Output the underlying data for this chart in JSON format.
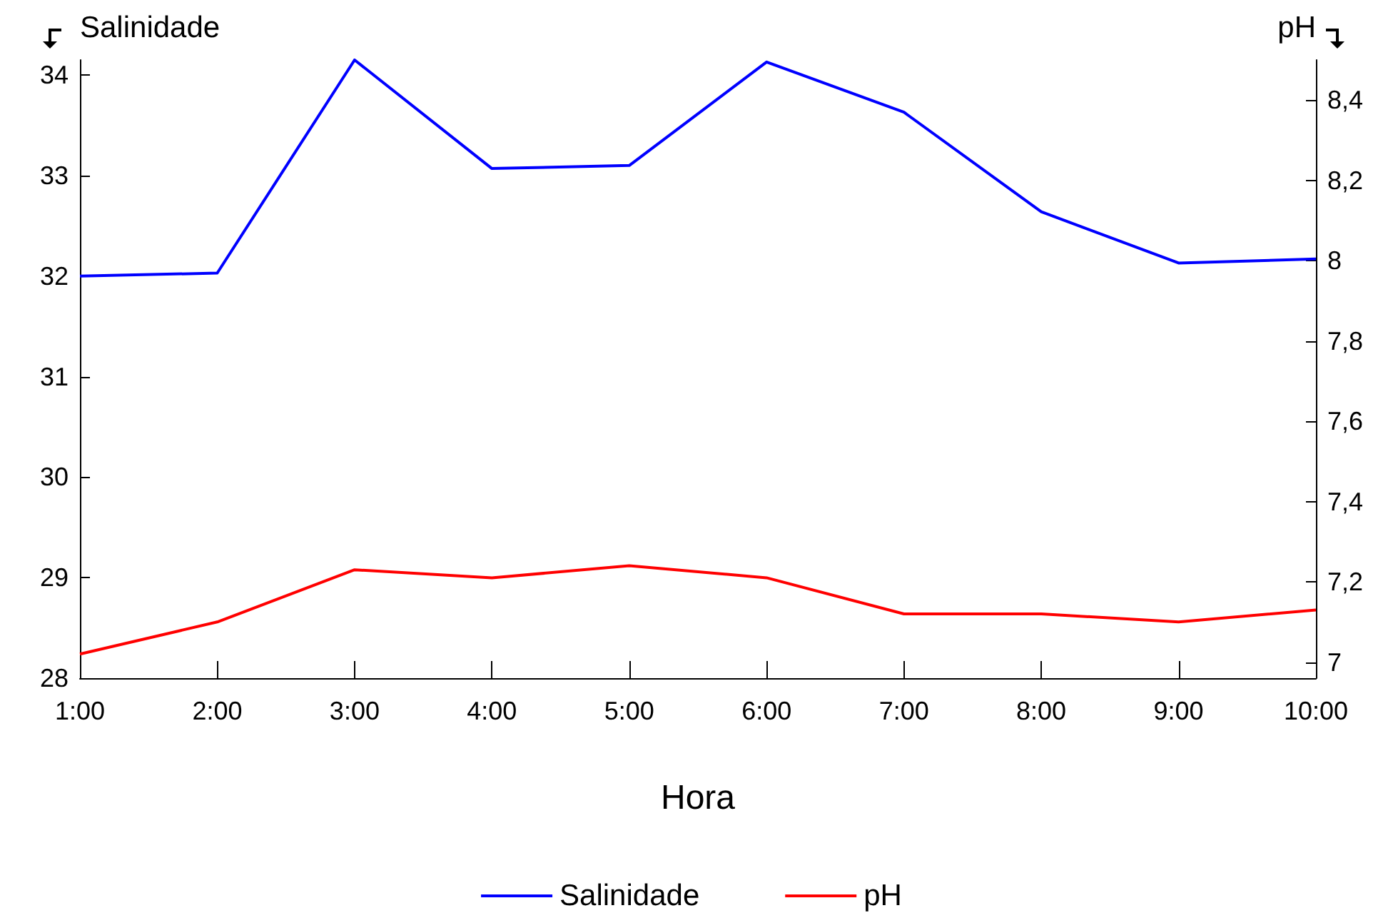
{
  "chart_data": {
    "type": "line",
    "xlabel": "Hora",
    "ylabel": "Salinidade",
    "y2label": "pH",
    "categories": [
      "1:00",
      "2:00",
      "3:00",
      "4:00",
      "5:00",
      "6:00",
      "7:00",
      "8:00",
      "9:00",
      "10:00"
    ],
    "series": [
      {
        "name": "Salinidade",
        "color": "#0000ff",
        "values": [
          32.0,
          32.03,
          34.15,
          33.07,
          33.1,
          34.13,
          33.63,
          32.64,
          32.13,
          32.17
        ]
      },
      {
        "name": "pH",
        "color": "#ff0000",
        "axis": "y2",
        "values": [
          7.02,
          7.1,
          7.23,
          7.21,
          7.24,
          7.21,
          7.12,
          7.12,
          7.1,
          7.13
        ]
      }
    ],
    "ylim": [
      28,
      34.15
    ],
    "yticks": [
      28,
      29,
      30,
      31,
      32,
      33,
      34
    ],
    "y2lim": [
      6.96,
      8.5
    ],
    "y2ticks": [
      {
        "value": 7,
        "label": "7"
      },
      {
        "value": 7.2,
        "label": "7,2"
      },
      {
        "value": 7.4,
        "label": "7,4"
      },
      {
        "value": 7.6,
        "label": "7,6"
      },
      {
        "value": 7.8,
        "label": "7,8"
      },
      {
        "value": 8,
        "label": "8"
      },
      {
        "value": 8.2,
        "label": "8,2"
      },
      {
        "value": 8.4,
        "label": "8,4"
      }
    ],
    "grid": false,
    "legend": "bottom",
    "marker": "none",
    "line_style": "solid"
  }
}
